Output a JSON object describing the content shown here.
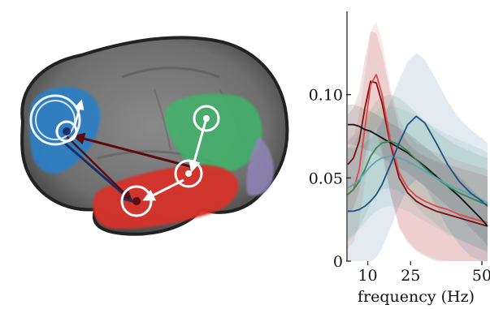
{
  "chart_data": {
    "type": "line",
    "title": "",
    "xlabel": "frequency (Hz)",
    "ylabel": "",
    "xlim": [
      3,
      52
    ],
    "ylim": [
      0,
      0.15
    ],
    "x_ticks": [
      {
        "value": 10,
        "label": "10"
      },
      {
        "value": 25,
        "label": "25"
      },
      {
        "value": 50,
        "label": "50"
      }
    ],
    "y_ticks": [
      {
        "value": 0,
        "label": "0"
      },
      {
        "value": 0.05,
        "label": "0.05"
      },
      {
        "value": 0.1,
        "label": "0.10"
      }
    ],
    "x": [
      3,
      5,
      7,
      9,
      11,
      13,
      15,
      18,
      21,
      24,
      27,
      30,
      34,
      38,
      42,
      46,
      50,
      52
    ],
    "series": [
      {
        "color": "#7a1010",
        "values": [
          0.058,
          0.062,
          0.072,
          0.092,
          0.108,
          0.107,
          0.095,
          0.07,
          0.05,
          0.041,
          0.036,
          0.033,
          0.03,
          0.028,
          0.026,
          0.024,
          0.022,
          0.021
        ],
        "band": 0.03
      },
      {
        "color": "#e0484a",
        "values": [
          0.04,
          0.043,
          0.055,
          0.08,
          0.106,
          0.112,
          0.1,
          0.072,
          0.053,
          0.044,
          0.039,
          0.036,
          0.033,
          0.031,
          0.028,
          0.026,
          0.024,
          0.023
        ],
        "band": 0.032
      },
      {
        "color": "#111111",
        "values": [
          0.082,
          0.082,
          0.081,
          0.079,
          0.078,
          0.076,
          0.074,
          0.071,
          0.068,
          0.065,
          0.061,
          0.057,
          0.051,
          0.045,
          0.039,
          0.032,
          0.025,
          0.021
        ],
        "band": 0.012
      },
      {
        "color": "#2f8a4f",
        "values": [
          0.04,
          0.043,
          0.048,
          0.055,
          0.063,
          0.068,
          0.071,
          0.072,
          0.07,
          0.066,
          0.061,
          0.056,
          0.05,
          0.045,
          0.041,
          0.038,
          0.035,
          0.034
        ],
        "band": 0.028
      },
      {
        "color": "#5ca8b0",
        "values": [
          0.044,
          0.046,
          0.049,
          0.053,
          0.057,
          0.06,
          0.062,
          0.063,
          0.062,
          0.06,
          0.057,
          0.054,
          0.05,
          0.046,
          0.043,
          0.04,
          0.037,
          0.035
        ],
        "band": 0.03
      },
      {
        "color": "#1c4f84",
        "values": [
          0.03,
          0.03,
          0.031,
          0.033,
          0.036,
          0.04,
          0.046,
          0.058,
          0.071,
          0.082,
          0.087,
          0.083,
          0.071,
          0.058,
          0.048,
          0.041,
          0.036,
          0.033
        ],
        "band": 0.038
      }
    ]
  },
  "brain": {
    "regions": [
      {
        "name": "frontal",
        "color": "#2a7fc6"
      },
      {
        "name": "parietal",
        "color": "#3fb36a"
      },
      {
        "name": "temporal",
        "color": "#d6322c"
      },
      {
        "name": "occipital",
        "color": "#8f86b8"
      }
    ]
  }
}
